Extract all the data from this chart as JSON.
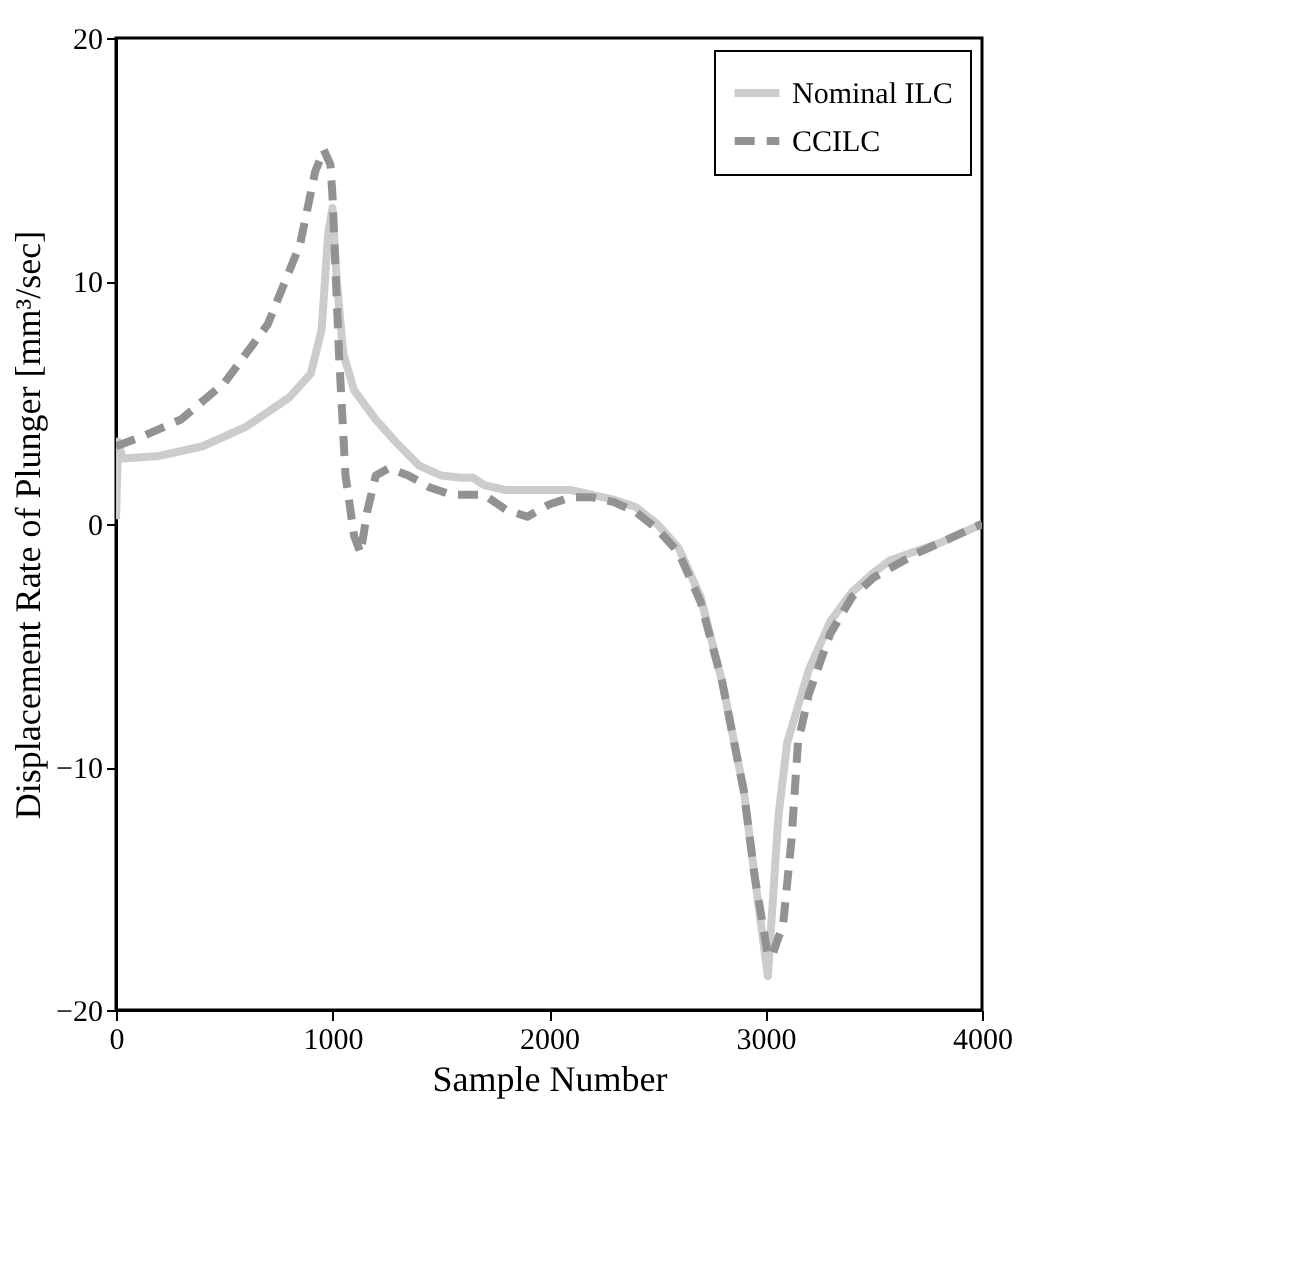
{
  "chart_data": {
    "type": "line",
    "xlabel": "Sample Number",
    "ylabel": "Displacement Rate of Plunger [mm³/sec]",
    "xlim": [
      0,
      4000
    ],
    "xticks": [
      0,
      1000,
      2000,
      3000,
      4000
    ],
    "ylim": [
      -20,
      20
    ],
    "yticks": [
      -20,
      -10,
      0,
      10,
      20
    ],
    "grid": false,
    "legend": "top right",
    "series": [
      {
        "name": "Nominal ILC",
        "color": "#cccccc",
        "line_style": "solid",
        "x": [
          0,
          10,
          30,
          200,
          400,
          600,
          800,
          900,
          950,
          980,
          1000,
          1020,
          1050,
          1100,
          1200,
          1300,
          1400,
          1500,
          1600,
          1650,
          1700,
          1800,
          1900,
          2000,
          2100,
          2200,
          2300,
          2400,
          2500,
          2600,
          2700,
          2800,
          2900,
          2950,
          3011,
          3030,
          3060,
          3100,
          3200,
          3300,
          3400,
          3500,
          3574,
          3700,
          3800,
          3900,
          4000
        ],
        "values": [
          0.2,
          3.4,
          2.7,
          2.8,
          3.2,
          4.0,
          5.2,
          6.2,
          8,
          12,
          13,
          10,
          7,
          5.5,
          4.3,
          3.3,
          2.4,
          2.0,
          1.9,
          1.9,
          1.6,
          1.4,
          1.4,
          1.4,
          1.4,
          1.2,
          1.0,
          0.7,
          0.0,
          -1.0,
          -3.0,
          -6.5,
          -11,
          -14.5,
          -18.6,
          -16,
          -12,
          -9,
          -6,
          -4,
          -2.8,
          -2,
          -1.5,
          -1.1,
          -0.8,
          -0.4,
          0
        ]
      },
      {
        "name": "CCILC",
        "color": "#929292",
        "line_style": "dashed",
        "x": [
          0,
          120,
          300,
          500,
          700,
          850,
          920,
          960,
          990,
          1000,
          1030,
          1060,
          1100,
          1130,
          1160,
          1200,
          1260,
          1350,
          1450,
          1550,
          1700,
          1800,
          1900,
          2000,
          2100,
          2200,
          2300,
          2400,
          2500,
          2600,
          2700,
          2800,
          2900,
          2950,
          3010,
          3030,
          3060,
          3080,
          3120,
          3150,
          3200,
          3300,
          3400,
          3500,
          3600,
          3700,
          3800,
          3900,
          4000
        ],
        "values": [
          3.2,
          3.6,
          4.3,
          5.8,
          8.2,
          11.5,
          14.5,
          15.4,
          14.8,
          13.5,
          7,
          2,
          -0.5,
          -1.2,
          0.5,
          2,
          2.3,
          2,
          1.5,
          1.2,
          1.2,
          0.6,
          0.3,
          0.8,
          1.1,
          1.1,
          0.9,
          0.5,
          -0.2,
          -1.2,
          -3.2,
          -6.5,
          -11,
          -14.5,
          -17.7,
          -17.8,
          -17,
          -16.6,
          -13,
          -9,
          -7,
          -4.5,
          -3,
          -2.2,
          -1.7,
          -1.2,
          -0.8,
          -0.4,
          0
        ]
      }
    ]
  }
}
